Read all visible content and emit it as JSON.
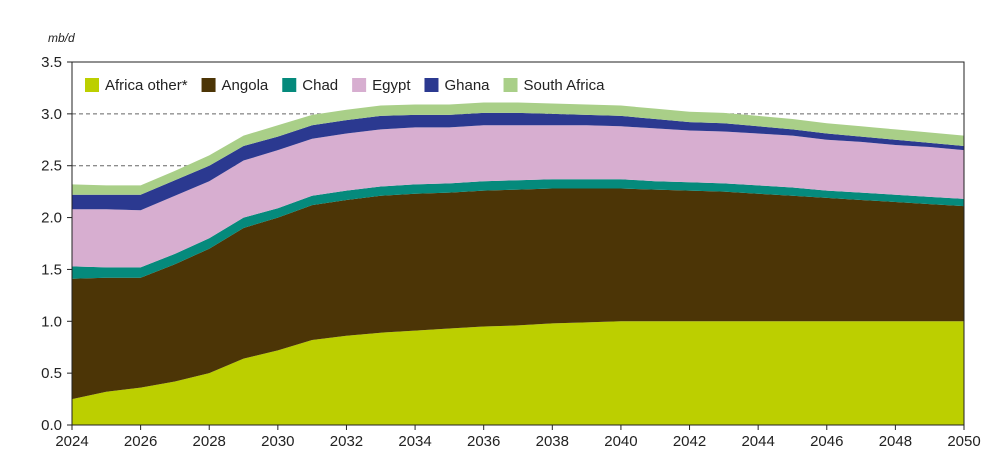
{
  "chart_data": {
    "type": "area",
    "stacked": true,
    "unit_label": "mb/d",
    "x": [
      2024,
      2025,
      2026,
      2027,
      2028,
      2029,
      2030,
      2031,
      2032,
      2033,
      2034,
      2035,
      2036,
      2037,
      2038,
      2039,
      2040,
      2041,
      2042,
      2043,
      2044,
      2045,
      2046,
      2047,
      2048,
      2049,
      2050
    ],
    "x_ticks": [
      "2024",
      "2026",
      "2028",
      "2030",
      "2032",
      "2034",
      "2036",
      "2038",
      "2040",
      "2042",
      "2044",
      "2046",
      "2048",
      "2050"
    ],
    "y_ticks": [
      "0.0",
      "0.5",
      "1.0",
      "1.5",
      "2.0",
      "2.5",
      "3.0",
      "3.5"
    ],
    "ylim": [
      0,
      3.5
    ],
    "xlim": [
      2024,
      2050
    ],
    "reference_lines": [
      2.5,
      3.0
    ],
    "legend_position": "top-left inside",
    "series": [
      {
        "name": "Africa other*",
        "color": "#bccf00",
        "values": [
          0.25,
          0.32,
          0.36,
          0.42,
          0.5,
          0.64,
          0.72,
          0.82,
          0.86,
          0.89,
          0.91,
          0.93,
          0.95,
          0.96,
          0.98,
          0.99,
          1.0,
          1.0,
          1.0,
          1.0,
          1.0,
          1.0,
          1.0,
          1.0,
          1.0,
          1.0,
          1.0
        ]
      },
      {
        "name": "Angola",
        "color": "#4c3506",
        "values": [
          1.16,
          1.1,
          1.06,
          1.13,
          1.2,
          1.26,
          1.28,
          1.3,
          1.31,
          1.32,
          1.32,
          1.31,
          1.31,
          1.31,
          1.3,
          1.29,
          1.28,
          1.27,
          1.26,
          1.25,
          1.23,
          1.21,
          1.19,
          1.17,
          1.15,
          1.13,
          1.11
        ]
      },
      {
        "name": "Chad",
        "color": "#058a7c",
        "values": [
          0.12,
          0.1,
          0.1,
          0.1,
          0.1,
          0.1,
          0.09,
          0.09,
          0.09,
          0.09,
          0.09,
          0.09,
          0.09,
          0.09,
          0.09,
          0.09,
          0.09,
          0.08,
          0.08,
          0.08,
          0.08,
          0.08,
          0.07,
          0.07,
          0.07,
          0.07,
          0.07
        ]
      },
      {
        "name": "Egypt",
        "color": "#d7aed0",
        "values": [
          0.55,
          0.56,
          0.55,
          0.56,
          0.55,
          0.55,
          0.56,
          0.55,
          0.55,
          0.55,
          0.55,
          0.54,
          0.54,
          0.53,
          0.52,
          0.52,
          0.51,
          0.51,
          0.5,
          0.5,
          0.5,
          0.5,
          0.49,
          0.49,
          0.48,
          0.48,
          0.47
        ]
      },
      {
        "name": "Ghana",
        "color": "#2b3990",
        "values": [
          0.14,
          0.14,
          0.15,
          0.15,
          0.15,
          0.14,
          0.13,
          0.13,
          0.13,
          0.13,
          0.12,
          0.12,
          0.12,
          0.12,
          0.11,
          0.1,
          0.1,
          0.09,
          0.08,
          0.08,
          0.07,
          0.06,
          0.06,
          0.05,
          0.05,
          0.04,
          0.04
        ]
      },
      {
        "name": "South Africa",
        "color": "#a9cf88",
        "values": [
          0.1,
          0.09,
          0.09,
          0.09,
          0.1,
          0.1,
          0.11,
          0.1,
          0.1,
          0.1,
          0.1,
          0.1,
          0.1,
          0.1,
          0.1,
          0.1,
          0.1,
          0.1,
          0.1,
          0.1,
          0.1,
          0.1,
          0.1,
          0.1,
          0.1,
          0.1,
          0.1
        ]
      }
    ]
  }
}
